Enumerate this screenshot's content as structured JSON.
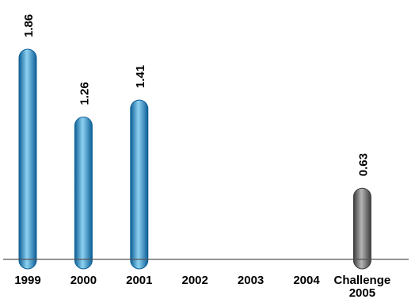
{
  "chart_data": {
    "type": "bar",
    "categories": [
      "1999",
      "2000",
      "2001",
      "2002",
      "2003",
      "2004",
      "Challenge\n2005"
    ],
    "values": [
      1.86,
      1.26,
      1.41,
      null,
      null,
      null,
      0.63
    ],
    "data_labels": [
      "1.86",
      "1.26",
      "1.41",
      "",
      "",
      "",
      "0.63"
    ],
    "ylim": [
      0,
      2.0
    ],
    "grid": false,
    "legend": "none",
    "title": "",
    "xlabel": "",
    "ylabel": "",
    "colors": {
      "default_bar": "#1e8fd0",
      "default_bar_light": "#8ed2f2",
      "default_bar_dark": "#0d5f96",
      "highlight_bar": "#6b6b6b",
      "highlight_bar_light": "#b5b5b5",
      "highlight_bar_dark": "#3c3c3c",
      "axis": "#555555"
    },
    "highlight_category_index": 6
  }
}
